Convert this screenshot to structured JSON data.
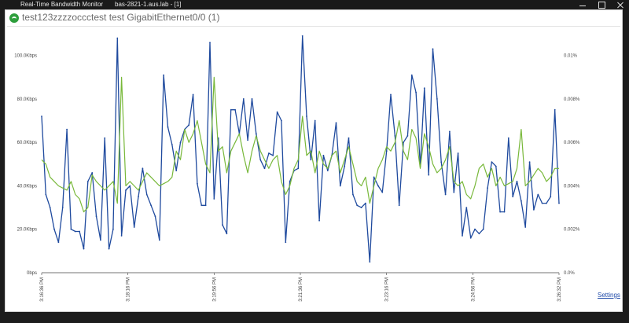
{
  "window": {
    "app_title": "Real-Time Bandwidth Monitor",
    "host_title": "bas-2821-1.aus.lab - [1]"
  },
  "panel": {
    "title": "test123zzzzoccctest test GigabitEthernet0/0 (1)",
    "status_color": "#2e9e3c",
    "settings_label": "Settings"
  },
  "chart_data": {
    "type": "line",
    "xlabel": "",
    "ylabel": "",
    "x_ticks": [
      "3:16:36 PM",
      "3:18:16 PM",
      "3:19:56 PM",
      "3:21:36 PM",
      "3:23:16 PM",
      "3:24:56 PM",
      "3:26:32 PM"
    ],
    "y_ticks_left": [
      "0bps",
      "20.0Kbps",
      "40.0Kbps",
      "60.0Kbps",
      "80.0Kbps",
      "100.0Kbps"
    ],
    "y_ticks_right": [
      "0.0%",
      "0.002%",
      "0.004%",
      "0.006%",
      "0.008%",
      "0.01%"
    ],
    "ylim_kbps": [
      0,
      100
    ],
    "ylim_right_pct": [
      0,
      0.01
    ],
    "series": [
      {
        "color": "#1f4a9e",
        "values": [
          72,
          36,
          30,
          20,
          14,
          30,
          66,
          20,
          19,
          19,
          11,
          42,
          46,
          26,
          15,
          62,
          11,
          20,
          108,
          17,
          38,
          40,
          21,
          35,
          48,
          36,
          31,
          26,
          15,
          91,
          67,
          59,
          47,
          60,
          66,
          68,
          82,
          41,
          31,
          31,
          106,
          34,
          62,
          22,
          18,
          75,
          75,
          64,
          80,
          61,
          80,
          64,
          52,
          48,
          55,
          54,
          74,
          70,
          14,
          42,
          47,
          48,
          109,
          72,
          52,
          70,
          24,
          54,
          47,
          54,
          69,
          40,
          49,
          62,
          36,
          31,
          30,
          32,
          5,
          44,
          40,
          37,
          56,
          82,
          63,
          31,
          60,
          63,
          91,
          83,
          49,
          85,
          45,
          103,
          80,
          51,
          36,
          65,
          37,
          55,
          17,
          30,
          16,
          20,
          18,
          20,
          39,
          51,
          49,
          28,
          28,
          62,
          35,
          42,
          33,
          21,
          51,
          29,
          36,
          32,
          32,
          35,
          75,
          32
        ]
      },
      {
        "color": "#78b83a",
        "values": [
          52,
          50,
          44,
          42,
          40,
          39,
          38,
          42,
          36,
          34,
          28,
          30,
          45,
          42,
          40,
          38,
          40,
          42,
          32,
          90,
          40,
          42,
          40,
          38,
          42,
          46,
          44,
          42,
          40,
          41,
          42,
          44,
          56,
          52,
          66,
          60,
          64,
          70,
          60,
          50,
          46,
          90,
          56,
          58,
          46,
          56,
          60,
          64,
          54,
          46,
          56,
          63,
          56,
          52,
          48,
          52,
          54,
          42,
          36,
          40,
          48,
          52,
          72,
          54,
          56,
          46,
          56,
          50,
          48,
          54,
          56,
          46,
          52,
          58,
          50,
          42,
          40,
          44,
          32,
          40,
          48,
          52,
          58,
          56,
          60,
          70,
          56,
          52,
          66,
          62,
          48,
          64,
          58,
          50,
          46,
          48,
          52,
          58,
          42,
          40,
          42,
          36,
          34,
          40,
          48,
          50,
          44,
          48,
          40,
          44,
          40,
          41,
          42,
          48,
          66,
          40,
          42,
          45,
          48,
          46,
          42,
          44,
          48,
          48
        ]
      }
    ]
  }
}
